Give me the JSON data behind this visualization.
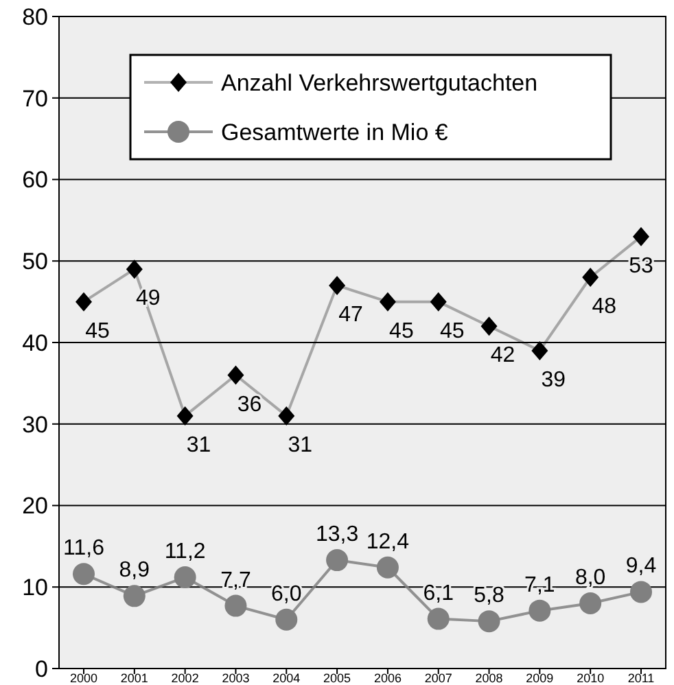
{
  "chart_data": {
    "type": "line",
    "categories": [
      "2000",
      "2001",
      "2002",
      "2003",
      "2004",
      "2005",
      "2006",
      "2007",
      "2008",
      "2009",
      "2010",
      "2011"
    ],
    "ylim": [
      0,
      80
    ],
    "yticks": [
      0,
      10,
      20,
      30,
      40,
      50,
      60,
      70,
      80
    ],
    "grid": "y",
    "legend": "top",
    "series": [
      {
        "name": "Anzahl Verkehrswertgutachten",
        "color": "#000000",
        "marker": "diamond",
        "values": [
          45,
          49,
          31,
          36,
          31,
          47,
          45,
          45,
          42,
          39,
          48,
          53
        ],
        "value_labels": [
          "45",
          "49",
          "31",
          "36",
          "31",
          "47",
          "45",
          "45",
          "42",
          "39",
          "48",
          "53"
        ]
      },
      {
        "name": "Gesamtwerte in Mio €",
        "color": "#808080",
        "marker": "circle",
        "values": [
          11.6,
          8.9,
          11.2,
          7.7,
          6.0,
          13.3,
          12.4,
          6.1,
          5.8,
          7.1,
          8.0,
          9.4
        ],
        "value_labels": [
          "11,6",
          "8,9",
          "11,2",
          "7,7",
          "6,0",
          "13,3",
          "12,4",
          "6,1",
          "5,8",
          "7,1",
          "8,0",
          "9,4"
        ]
      }
    ]
  }
}
